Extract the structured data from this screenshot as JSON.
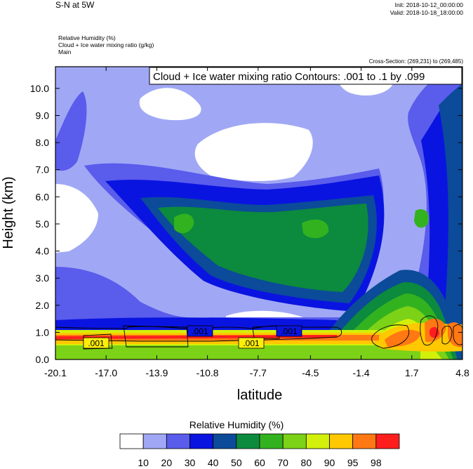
{
  "header": {
    "title": "S-N at 5W",
    "init": "Init: 2018-10-12_00:00:00",
    "valid": "Valid: 2018-10-18_18:00:00",
    "fields": [
      "Relative Humidity   (%)",
      "Cloud + Ice water mixing ratio   (g/kg)",
      "Main"
    ],
    "cross_section": "Cross-Section: (269,231) to (269,485)"
  },
  "colors": {
    "rh_levels": [
      "#ffffff",
      "#a0a8f5",
      "#5a5cec",
      "#0a14e0",
      "#0b4b9a",
      "#0c8a3e",
      "#33b220",
      "#7cd216",
      "#d2f00a",
      "#ffc800",
      "#ff7814",
      "#ff1e1e"
    ]
  },
  "chart_data": {
    "type": "contour",
    "title": "Cloud + Ice water mixing ratio Contours: .001 to .1 by .099",
    "xlabel": "latitude",
    "ylabel": "Height (km)",
    "xticks": [
      "-20.1",
      "-17.0",
      "-13.9",
      "-10.8",
      "-7.7",
      "-4.5",
      "-1.4",
      "1.7",
      "4.8"
    ],
    "yticks": [
      "0.0",
      "1.0",
      "2.0",
      "3.0",
      "4.0",
      "5.0",
      "6.0",
      "7.0",
      "8.0",
      "9.0",
      "10.0"
    ],
    "xlim": [
      -20.1,
      4.8
    ],
    "ylim": [
      0.0,
      10.8
    ],
    "colorbar": {
      "title": "Relative Humidity  (%)",
      "labels": [
        "10",
        "20",
        "30",
        "40",
        "50",
        "60",
        "70",
        "80",
        "90",
        "95",
        "98"
      ]
    },
    "contour_labels": [
      ".001",
      ".001",
      ".001",
      ".001"
    ]
  }
}
